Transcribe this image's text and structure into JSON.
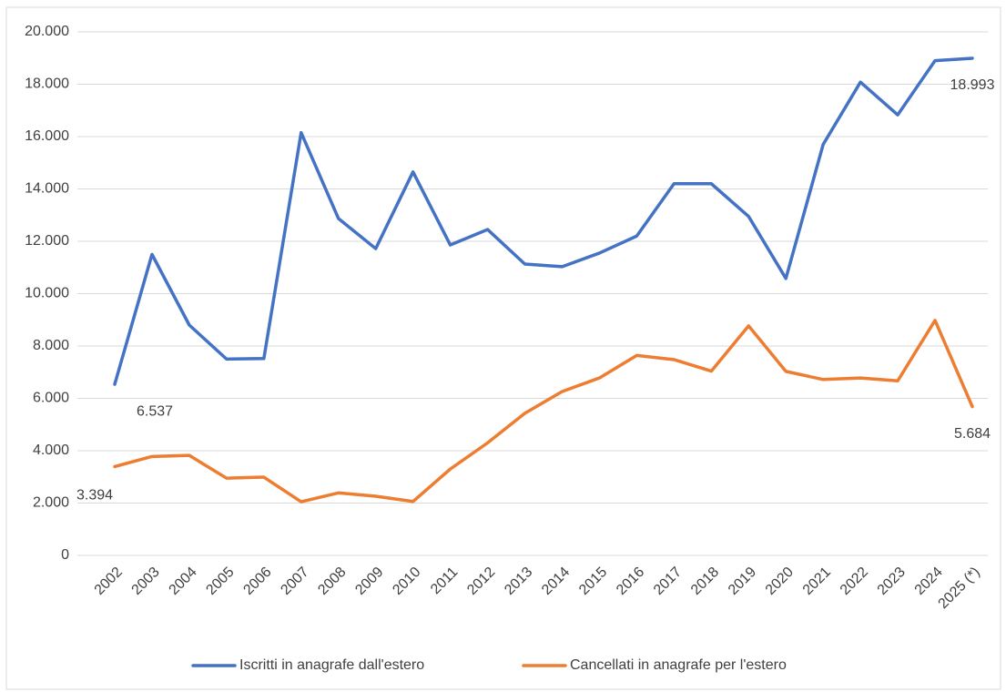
{
  "chart_data": {
    "type": "line",
    "categories": [
      "2002",
      "2003",
      "2004",
      "2005",
      "2006",
      "2007",
      "2008",
      "2009",
      "2010",
      "2011",
      "2012",
      "2013",
      "2014",
      "2015",
      "2016",
      "2017",
      "2018",
      "2019",
      "2020",
      "2021",
      "2022",
      "2023",
      "2024",
      "2025 (*)"
    ],
    "series": [
      {
        "name": "Iscritti in anagrafe dall'estero",
        "color": "#4472c4",
        "values": [
          6537,
          11500,
          8800,
          7500,
          7520,
          16150,
          12870,
          11720,
          14650,
          11860,
          12450,
          11130,
          11030,
          11550,
          12200,
          14200,
          14200,
          12950,
          10580,
          15700,
          18080,
          16830,
          18900,
          18993
        ],
        "value_labels": [
          "6.537",
          null,
          null,
          null,
          null,
          null,
          null,
          null,
          null,
          null,
          null,
          null,
          null,
          null,
          null,
          null,
          null,
          null,
          null,
          null,
          null,
          null,
          null,
          "18.993"
        ]
      },
      {
        "name": "Cancellati in anagrafe per l'estero",
        "color": "#ed7d31",
        "values": [
          3394,
          3780,
          3820,
          2950,
          2990,
          2050,
          2390,
          2260,
          2060,
          3300,
          4300,
          5430,
          6260,
          6780,
          7640,
          7480,
          7040,
          8770,
          7030,
          6720,
          6780,
          6670,
          8980,
          5684
        ],
        "value_labels": [
          "3.394",
          null,
          null,
          null,
          null,
          null,
          null,
          null,
          null,
          null,
          null,
          null,
          null,
          null,
          null,
          null,
          null,
          null,
          null,
          null,
          null,
          null,
          null,
          "5.684"
        ]
      }
    ],
    "ylim": [
      0,
      20000
    ],
    "yticks": [
      0,
      {
        "value": 2000,
        "label": "2.000"
      },
      {
        "value": 4000,
        "label": "4.000"
      },
      {
        "value": 6000,
        "label": "6.000"
      },
      {
        "value": 8000,
        "label": "8.000"
      },
      {
        "value": 10000,
        "label": "10.000"
      },
      {
        "value": 12000,
        "label": "12.000"
      },
      {
        "value": 14000,
        "label": "14.000"
      },
      {
        "value": 16000,
        "label": "16.000"
      },
      {
        "value": 18000,
        "label": "18.000"
      },
      {
        "value": 20000,
        "label": "20.000"
      }
    ],
    "grid": true,
    "legend": "bottom"
  }
}
